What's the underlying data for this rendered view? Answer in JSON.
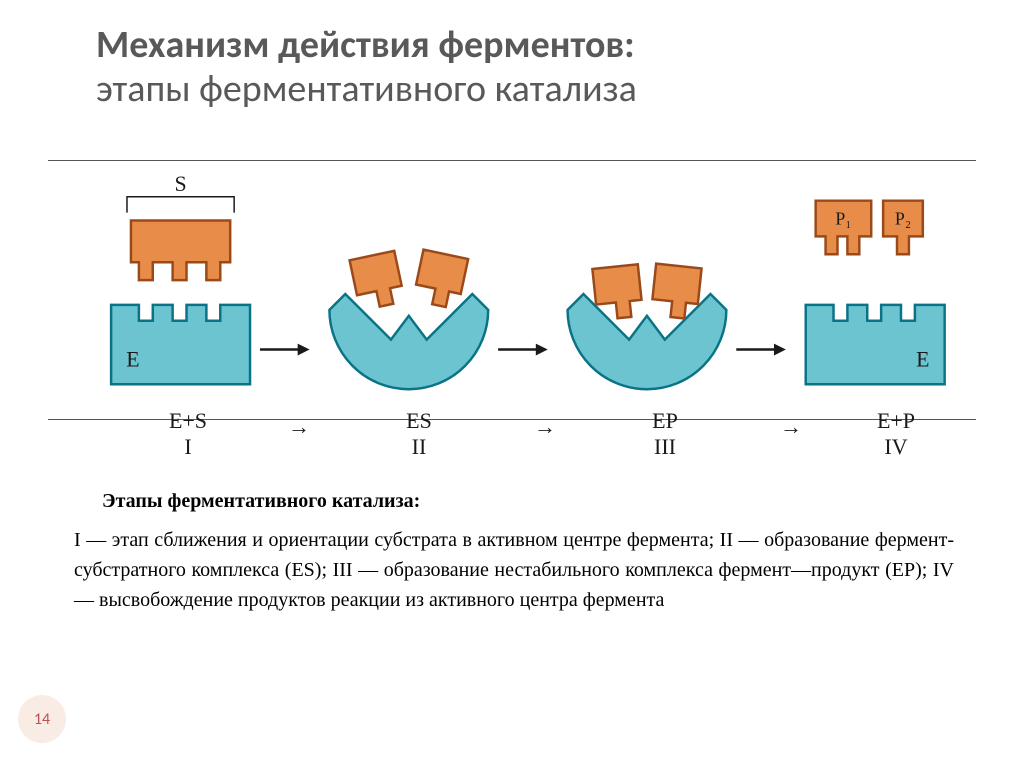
{
  "title": {
    "line1": "Механизм действия ферментов:",
    "line2": "этапы ферментативного катализа",
    "fontsize_pt": 38,
    "color": "#595959"
  },
  "colors": {
    "enzyme_fill": "#6bc4cf",
    "enzyme_stroke": "#0b7386",
    "substrate_fill": "#e88d49",
    "substrate_stroke": "#9a4a1a",
    "arrow": "#1a1a1a",
    "text": "#1a1a1a",
    "border_frame": "#555555",
    "badge_bg": "#f8ece4",
    "badge_text": "#c0504d"
  },
  "diagram": {
    "type": "flowchart",
    "label_S": "S",
    "label_E": "E",
    "label_P1": "P₁",
    "label_P2": "P₂",
    "label_fontsize": 20,
    "stages": [
      {
        "eq_top": "E+S",
        "eq_bottom": "I"
      },
      {
        "eq_top": "ES",
        "eq_bottom": "II"
      },
      {
        "eq_top": "EP",
        "eq_bottom": "III"
      },
      {
        "eq_top": "E+P",
        "eq_bottom": "IV"
      }
    ],
    "eq_fontsize": 22,
    "eq_arrow": "→"
  },
  "legend": {
    "heading": "Этапы ферментативного катализа:",
    "heading_fontsize": 20,
    "body": "I — этап сближения и ориентации субстрата в активном центре фермента; II — образование фермент-субстратного комплекса (ES); III — образование нестабильного комплекса фермент—продукт (EP); IV — высвобождение продуктов реакции из активного центра фермента",
    "body_fontsize": 20
  },
  "page_number": "14"
}
